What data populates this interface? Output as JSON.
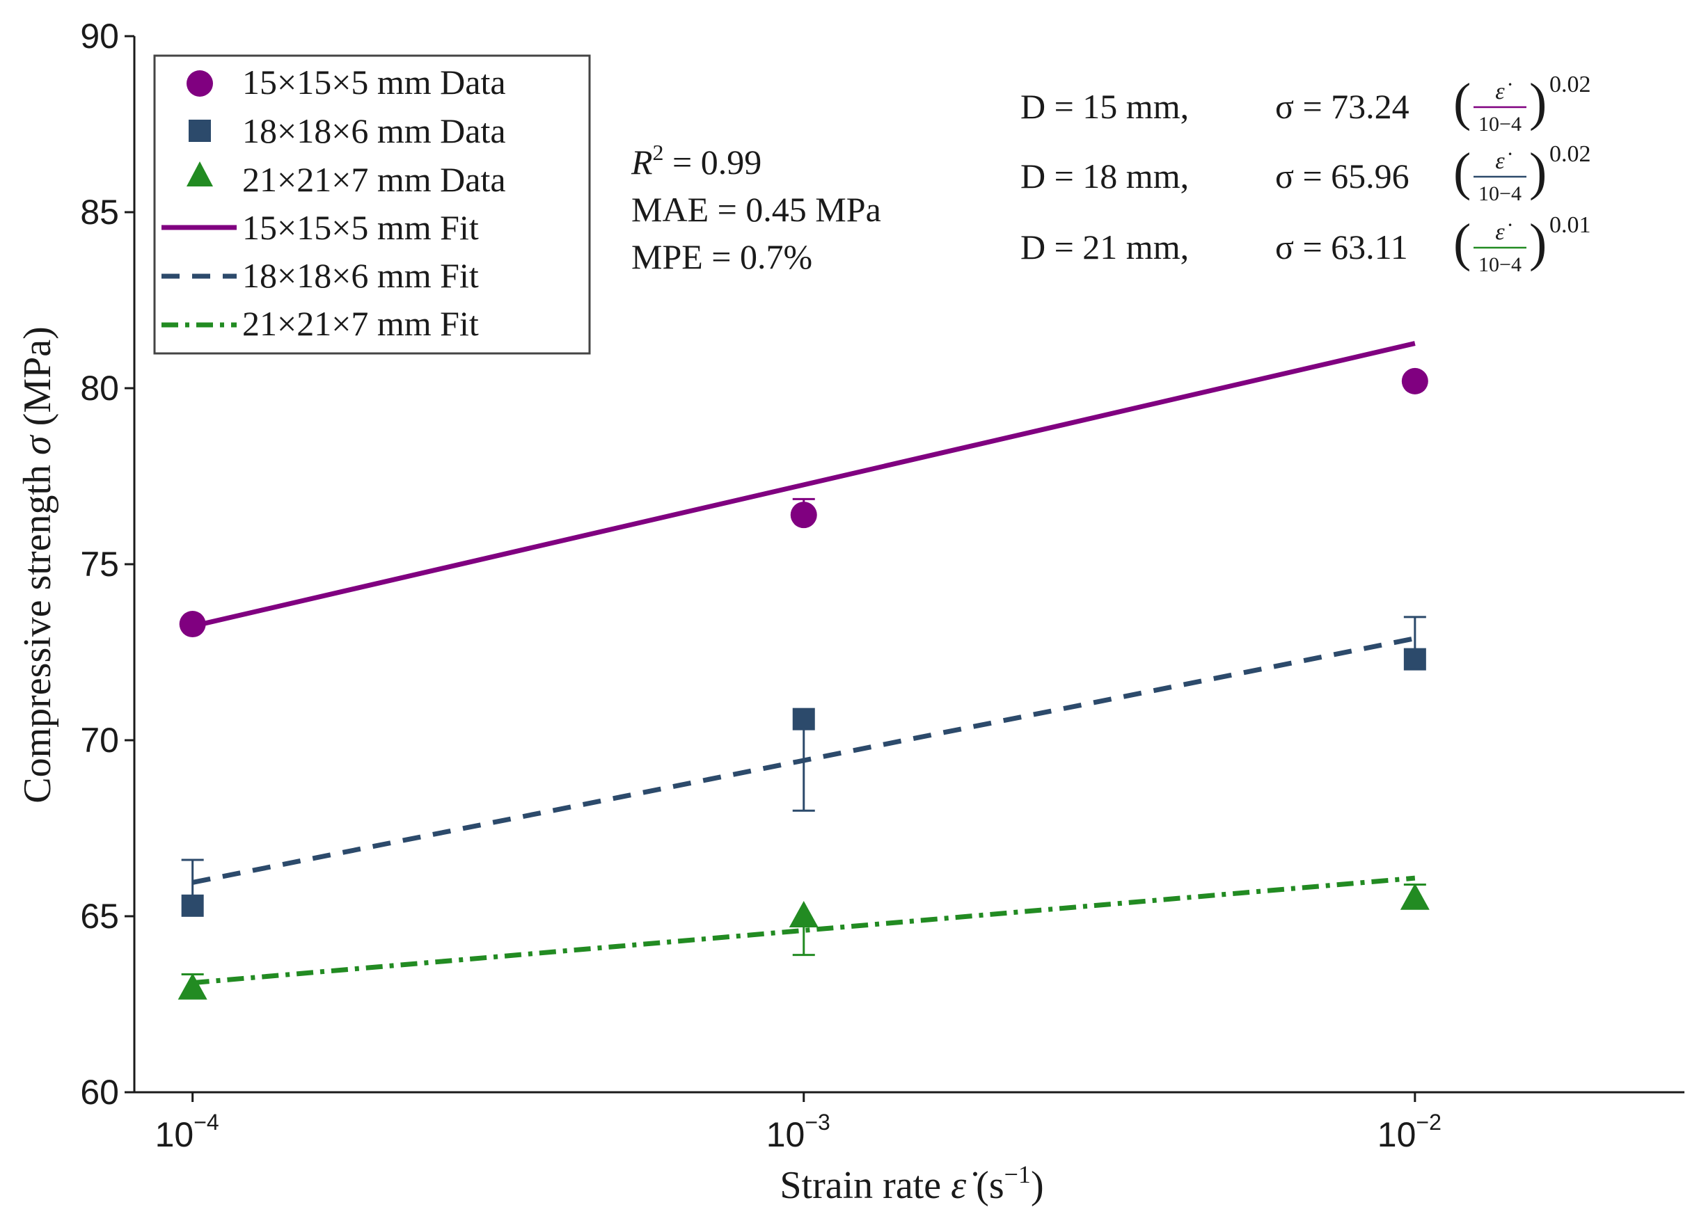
{
  "chart_data": {
    "type": "line",
    "xscale": "log",
    "x": [
      0.0001,
      0.001,
      0.01
    ],
    "x_tick_labels": [
      {
        "base": "10",
        "exp": "−4"
      },
      {
        "base": "10",
        "exp": "−3"
      },
      {
        "base": "10",
        "exp": "−2"
      }
    ],
    "xlim": [
      8.03e-05,
      0.0276
    ],
    "ylim": [
      60,
      90
    ],
    "y_ticks": [
      60,
      65,
      70,
      75,
      80,
      85,
      90
    ],
    "xlabel": {
      "main": "Strain rate ",
      "symbol": "ε̇",
      "units_open": " (s",
      "units_exp": "−1",
      "units_close": ")"
    },
    "ylabel": {
      "main": "Compressive strength ",
      "symbol": "σ",
      "units": " (MPa)"
    },
    "series": [
      {
        "name": "15×15×5 mm",
        "data_label": "15×15×5 mm Data",
        "fit_label": "15×15×5 mm Fit",
        "color": "#800080",
        "marker": "circle",
        "line_style": "solid",
        "values": [
          73.3,
          76.4,
          80.2
        ],
        "error_upper": [
          73.3,
          76.85,
          80.2
        ],
        "error_lower": [
          73.3,
          76.4,
          80.2
        ],
        "fit_coefficient": 73.24,
        "fit_exponent": 0.0226,
        "equation": {
          "lhs": "D = 15 mm,",
          "sigma": "σ = 73.24",
          "frac_num": "ε̇",
          "frac_den": "10−4",
          "exp": "0.02"
        }
      },
      {
        "name": "18×18×6 mm",
        "data_label": "18×18×6 mm Data",
        "fit_label": "18×18×6 mm Fit",
        "color": "#2c4a6b",
        "marker": "square",
        "line_style": "dashed",
        "values": [
          65.3,
          70.6,
          72.3
        ],
        "error_upper": [
          66.6,
          70.6,
          73.5
        ],
        "error_lower": [
          65.3,
          68.0,
          72.3
        ],
        "fit_coefficient": 65.96,
        "fit_exponent": 0.0217,
        "equation": {
          "lhs": "D = 18 mm,",
          "sigma": "σ = 65.96",
          "frac_num": "ε̇",
          "frac_den": "10−4",
          "exp": "0.02"
        }
      },
      {
        "name": "21×21×7 mm",
        "data_label": "21×21×7 mm Data",
        "fit_label": "21×21×7 mm Fit",
        "color": "#228b22",
        "marker": "triangle",
        "line_style": "dashdot",
        "values": [
          62.95,
          65.0,
          65.5
        ],
        "error_upper": [
          63.35,
          65.0,
          65.9
        ],
        "error_lower": [
          62.95,
          63.9,
          65.5
        ],
        "fit_coefficient": 63.11,
        "fit_exponent": 0.01,
        "equation": {
          "lhs": "D = 21 mm,",
          "sigma": "σ = 63.11",
          "frac_num": "ε̇",
          "frac_den": "10−4",
          "exp": "0.01"
        }
      }
    ],
    "legend_position": "top-left",
    "stats": {
      "r2_label": "R",
      "r2_exp": "2",
      "r2_value": " = 0.99",
      "mae": "MAE = 0.45 MPa",
      "mpe": "MPE = 0.7%"
    }
  },
  "colors": {
    "axis": "#1a1a1a",
    "legend_border": "#444444",
    "background": "#ffffff"
  }
}
